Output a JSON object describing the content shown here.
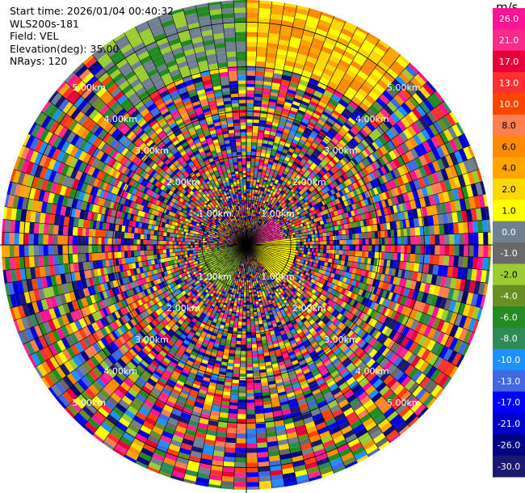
{
  "header": {
    "start_time": "Start time: 2026/01/04 00:40:32",
    "instrument": "WLS200s-181",
    "field": "Field: VEL",
    "elevation": "Elevation(deg): 35.00",
    "nrays": "NRays: 120"
  },
  "colorbar": {
    "unit": "m/s",
    "ticks": [
      "26.0",
      "21.0",
      "17.0",
      "13.0",
      "10.0",
      "8.0",
      "6.0",
      "4.0",
      "2.0",
      "1.0",
      "0.0",
      "-1.0",
      "-2.0",
      "-4.0",
      "-6.0",
      "-8.0",
      "-10.0",
      "-13.0",
      "-17.0",
      "-21.0",
      "-26.0",
      "-30.0"
    ],
    "colors": [
      "#ff1493",
      "#ff2a8a",
      "#e8003a",
      "#ff3030",
      "#ff4500",
      "#ff7f50",
      "#ff8c00",
      "#ffa500",
      "#ffd700",
      "#ffff00",
      "#708090",
      "#696969",
      "#9acd32",
      "#6b8e23",
      "#228b22",
      "#2e8b57",
      "#1e90ff",
      "#4169e1",
      "#0000ff",
      "#0000cd",
      "#000080",
      "#191970"
    ]
  },
  "chart_data": {
    "type": "heatmap",
    "subtype": "ppi-polar",
    "field": "VEL",
    "units": "m/s",
    "elevation_deg": 35.0,
    "n_rays": 120,
    "range_rings_km": [
      "1.00km",
      "2.00km",
      "3.00km",
      "4.00km",
      "5.00km"
    ],
    "range_ring_values_km": [
      1,
      2,
      3,
      4,
      5
    ],
    "vmin": -30.0,
    "vmax": 26.0
  }
}
